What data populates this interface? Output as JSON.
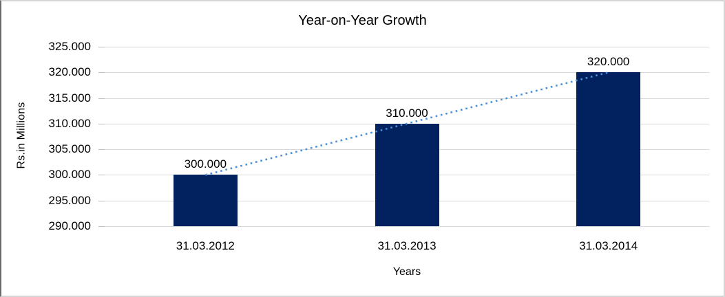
{
  "chart_data": {
    "type": "bar",
    "title": "Year-on-Year Growth",
    "xlabel": "Years",
    "ylabel": "Rs.in Millions",
    "categories": [
      "31.03.2012",
      "31.03.2013",
      "31.03.2014"
    ],
    "series": [
      {
        "name": "Rs.in Millions",
        "values": [
          300000,
          310000,
          320000
        ]
      }
    ],
    "value_labels": [
      "300.000",
      "310.000",
      "320.000"
    ],
    "yticks": [
      {
        "value": 290000,
        "label": "290.000"
      },
      {
        "value": 295000,
        "label": "295.000"
      },
      {
        "value": 300000,
        "label": "300.000"
      },
      {
        "value": 305000,
        "label": "305.000"
      },
      {
        "value": 310000,
        "label": "310.000"
      },
      {
        "value": 315000,
        "label": "315.000"
      },
      {
        "value": 320000,
        "label": "320.000"
      },
      {
        "value": 325000,
        "label": "325.000"
      }
    ],
    "ylim": [
      290000,
      325000
    ],
    "grid": true,
    "legend_position": "none",
    "bar_color": "#02215f",
    "gridline_color": "#d9d9d9",
    "tick_color": "#bfbfbf",
    "text_color": "#000000",
    "trendline": {
      "type": "linear",
      "style": "dotted",
      "color": "#4a90d8"
    }
  }
}
